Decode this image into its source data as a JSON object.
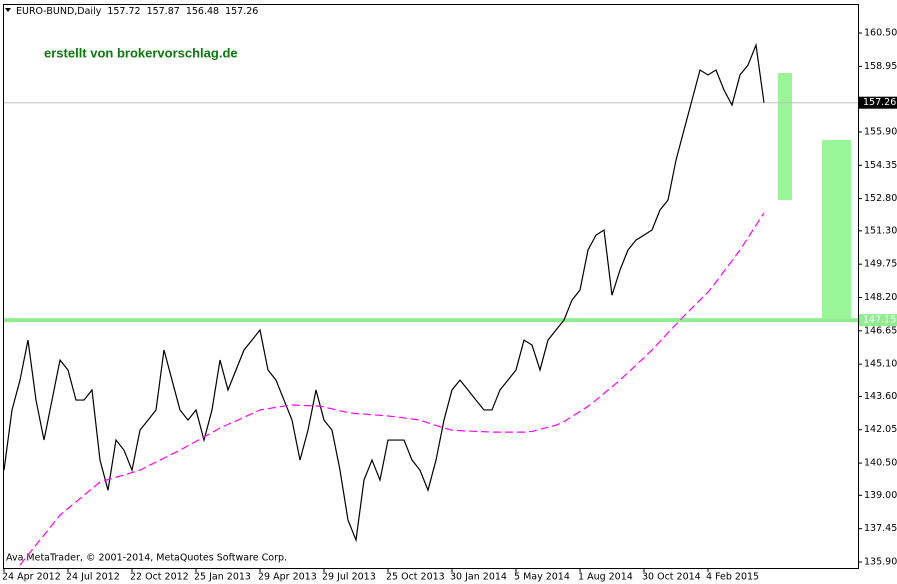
{
  "chart_data": {
    "type": "line",
    "title": "EURO-BUND,Daily",
    "header_values": [
      157.72,
      157.87,
      156.48,
      157.26
    ],
    "annotation": "erstellt von brokervorschlag.de",
    "footer": "Ava MetaTrader, © 2001-2014, MetaQuotes Software Corp.",
    "categories": [
      "24 Apr 2012",
      null,
      null,
      null,
      null,
      null,
      null,
      null,
      "24 Jul 2012",
      null,
      null,
      null,
      null,
      null,
      null,
      null,
      "22 Oct 2012",
      null,
      null,
      null,
      null,
      null,
      null,
      null,
      "25 Jan 2013",
      null,
      null,
      null,
      null,
      null,
      null,
      null,
      "29 Apr 2013",
      null,
      null,
      null,
      null,
      null,
      null,
      null,
      "29 Jul 2013",
      null,
      null,
      null,
      null,
      null,
      null,
      null,
      "25 Oct 2013",
      null,
      null,
      null,
      null,
      null,
      null,
      null,
      "30 Jan 2014",
      null,
      null,
      null,
      null,
      null,
      null,
      null,
      "5 May 2014",
      null,
      null,
      null,
      null,
      null,
      null,
      null,
      "1 Aug 2014",
      null,
      null,
      null,
      null,
      null,
      null,
      null,
      "30 Oct 2014",
      null,
      null,
      null,
      null,
      null,
      null,
      null,
      "4 Feb 2015",
      null,
      null,
      null,
      null,
      null,
      null,
      null
    ],
    "series": [
      {
        "color": "#000000",
        "style": "solid",
        "values": [
          140.17,
          142.97,
          144.36,
          146.22,
          143.43,
          141.57,
          143.43,
          145.29,
          144.83,
          143.43,
          143.43,
          143.9,
          140.64,
          139.24,
          141.57,
          141.1,
          140.17,
          142.03,
          142.5,
          142.97,
          145.76,
          144.36,
          142.97,
          142.5,
          142.97,
          141.57,
          142.97,
          145.29,
          143.9,
          144.83,
          145.76,
          146.22,
          146.69,
          144.83,
          144.36,
          143.43,
          142.5,
          140.64,
          142.03,
          143.9,
          142.5,
          142.03,
          140.17,
          137.85,
          136.92,
          139.71,
          140.64,
          139.71,
          141.57,
          141.57,
          141.57,
          140.64,
          140.17,
          139.24,
          140.64,
          142.5,
          143.9,
          144.36,
          143.9,
          143.43,
          142.97,
          142.97,
          143.9,
          144.36,
          144.83,
          146.22,
          145.99,
          144.83,
          146.22,
          146.69,
          147.15,
          148.08,
          148.55,
          150.41,
          151.1,
          151.34,
          148.31,
          149.48,
          150.41,
          150.87,
          151.1,
          151.34,
          152.27,
          152.73,
          154.59,
          155.99,
          157.38,
          158.78,
          158.55,
          158.78,
          157.85,
          157.15,
          158.55,
          159.01,
          159.94,
          157.26
        ]
      },
      {
        "color": "#ff00ff",
        "style": "dashed",
        "values": [
          null,
          null,
          135.76,
          136.22,
          136.69,
          137.15,
          137.62,
          138.08,
          138.39,
          138.7,
          139.0,
          139.31,
          139.62,
          139.73,
          139.84,
          139.95,
          140.06,
          140.17,
          140.36,
          140.55,
          140.73,
          140.92,
          141.1,
          141.31,
          141.51,
          141.72,
          141.92,
          142.13,
          142.3,
          142.46,
          142.63,
          142.8,
          142.97,
          143.03,
          143.09,
          143.15,
          143.2,
          143.18,
          143.17,
          143.16,
          143.11,
          143.02,
          142.93,
          142.85,
          142.8,
          142.78,
          142.75,
          142.72,
          142.69,
          142.65,
          142.6,
          142.55,
          142.5,
          142.37,
          142.25,
          142.13,
          142.03,
          142.01,
          141.99,
          141.97,
          141.96,
          141.94,
          141.94,
          141.94,
          141.94,
          141.94,
          141.97,
          142.07,
          142.17,
          142.26,
          142.43,
          142.67,
          142.9,
          143.14,
          143.43,
          143.74,
          144.05,
          144.36,
          144.71,
          145.05,
          145.4,
          145.76,
          146.16,
          146.56,
          146.95,
          147.34,
          147.71,
          148.08,
          148.45,
          148.92,
          149.42,
          149.91,
          150.41,
          150.98,
          151.56,
          152.13
        ]
      }
    ],
    "ylim": [
      135.62,
      161.85
    ],
    "yticks": [
      {
        "value": 160.5,
        "label": "160.50"
      },
      {
        "value": 158.95,
        "label": "158.95"
      },
      {
        "value": 155.9,
        "label": "155.90"
      },
      {
        "value": 154.35,
        "label": "154.35"
      },
      {
        "value": 152.8,
        "label": "152.80"
      },
      {
        "value": 151.3,
        "label": "151.30"
      },
      {
        "value": 149.75,
        "label": "149.75"
      },
      {
        "value": 148.2,
        "label": "148.20"
      },
      {
        "value": 146.65,
        "label": "146.65"
      },
      {
        "value": 145.1,
        "label": "145.10"
      },
      {
        "value": 143.6,
        "label": "143.60"
      },
      {
        "value": 142.05,
        "label": "142.05"
      },
      {
        "value": 140.5,
        "label": "140.50"
      },
      {
        "value": 139,
        "label": "139.00"
      },
      {
        "value": 137.45,
        "label": "137.45"
      },
      {
        "value": 135.9,
        "label": "135.90"
      }
    ],
    "current_price": 157.26,
    "current_price_color": "#c0c0c0",
    "level": 147.15,
    "level_color": "#90ee90",
    "zones": [
      {
        "from": 152.73,
        "to": 158.64
      },
      {
        "from": 147.24,
        "to": 155.52
      }
    ],
    "zone_color": "#98f598",
    "grid": false
  }
}
